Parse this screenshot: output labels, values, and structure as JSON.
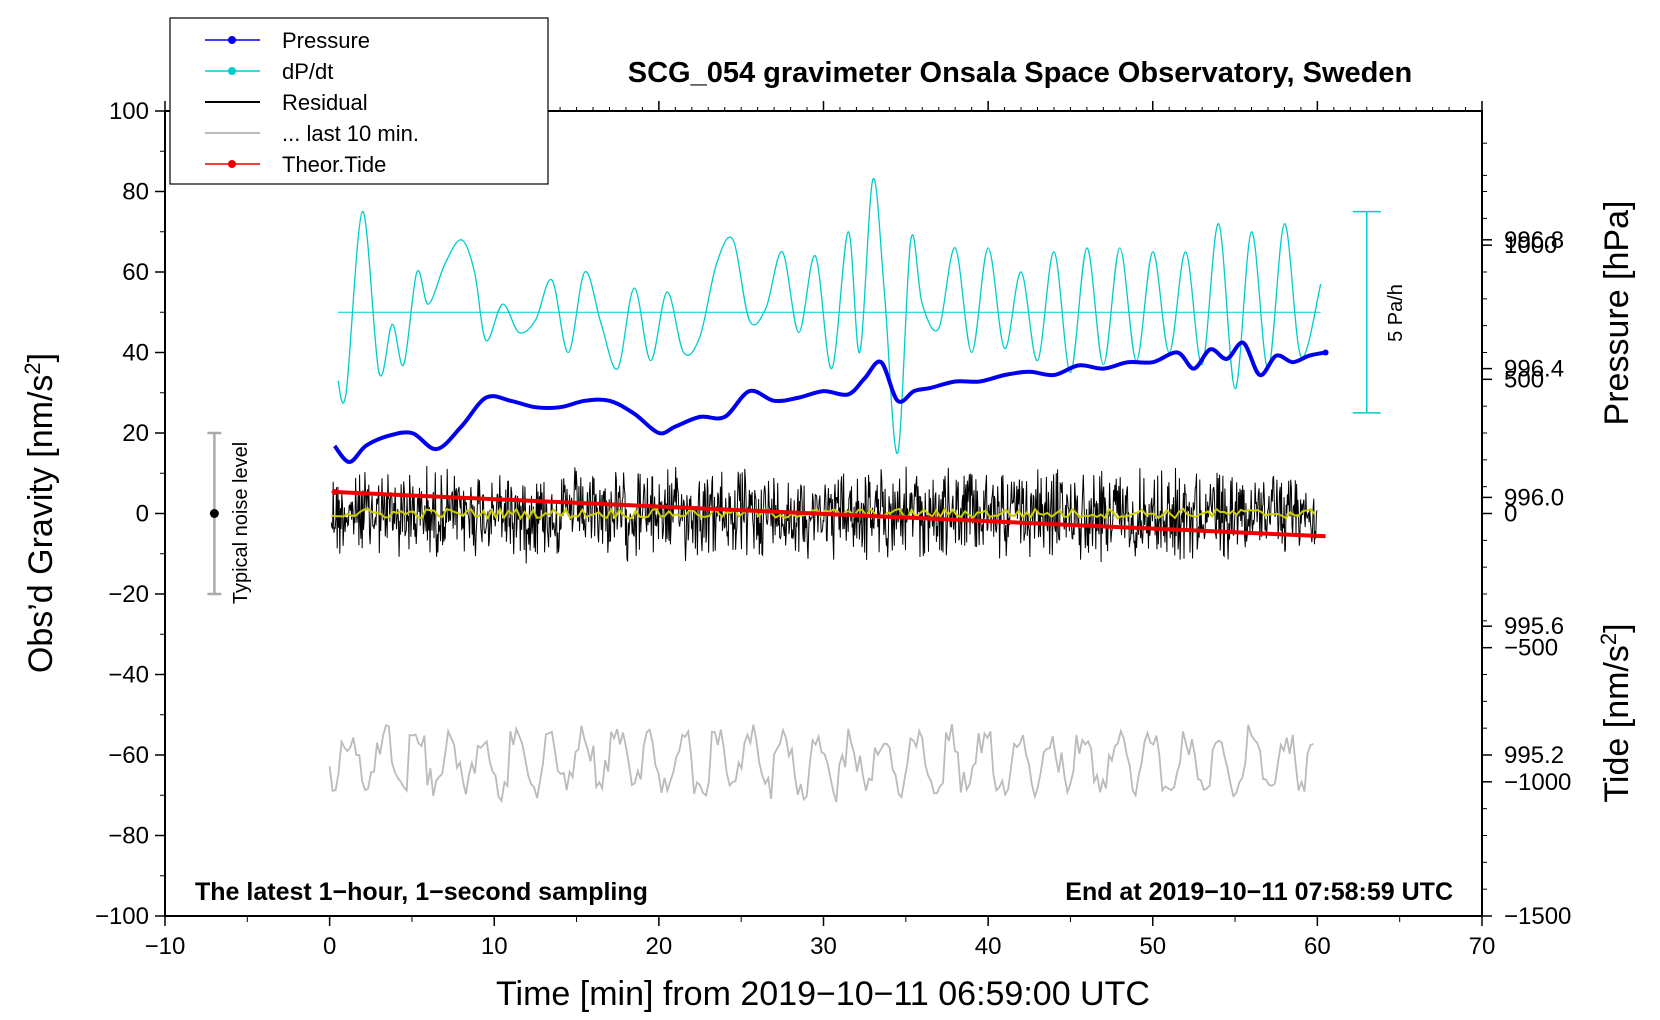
{
  "chart_data": {
    "type": "line",
    "title": "SCG_054 gravimeter Onsala Space Observatory, Sweden",
    "xlabel": "Time [min] from 2019−10−11 06:59:00 UTC",
    "ylabel_left": "Obs’d Gravity [nm/s",
    "ylabel_left_sup": "2",
    "ylabel_left_end": "]",
    "ylabel_right_pressure": "Pressure [hPa]",
    "ylabel_right_tide": "Tide [nm/s",
    "ylabel_right_tide_sup": "2",
    "ylabel_right_tide_end": "]",
    "xlim": [
      -10,
      70
    ],
    "ylim_left": [
      -100,
      100
    ],
    "pressure_ylim": [
      994.7,
      997.2
    ],
    "tide_ylim": [
      -1500,
      1500
    ],
    "x_ticks": [
      "−10",
      "0",
      "10",
      "20",
      "30",
      "40",
      "50",
      "60",
      "70"
    ],
    "x_tick_values": [
      -10,
      0,
      10,
      20,
      30,
      40,
      50,
      60,
      70
    ],
    "left_ticks": [
      "100",
      "80",
      "60",
      "40",
      "20",
      "0",
      "−20",
      "−40",
      "−60",
      "−80",
      "−100"
    ],
    "left_tick_values": [
      100,
      80,
      60,
      40,
      20,
      0,
      -20,
      -40,
      -60,
      -80,
      -100
    ],
    "pressure_ticks": [
      "996.8",
      "996.4",
      "996.0",
      "995.6",
      "995.2"
    ],
    "pressure_tick_values": [
      996.8,
      996.4,
      996.0,
      995.6,
      995.2
    ],
    "tide_ticks": [
      "1000",
      "500",
      "0",
      "−500",
      "−1000",
      "−1500"
    ],
    "tide_tick_values": [
      1000,
      500,
      0,
      -500,
      -1000,
      -1500
    ],
    "legend": [
      {
        "label": "Pressure",
        "color": "#0000ee",
        "marker": true
      },
      {
        "label": "dP/dt",
        "color": "#00cccc",
        "marker": true
      },
      {
        "label": "Residual",
        "color": "#000000",
        "marker": false
      },
      {
        "label": "... last 10 min.",
        "color": "#bbbbbb",
        "marker": false
      },
      {
        "label": "Theor.Tide",
        "color": "#ee0000",
        "marker": true
      }
    ],
    "annotation_left": "The latest 1−hour, 1−second sampling",
    "annotation_right": "End at 2019−10−11 07:58:59 UTC",
    "noise_label": "Typical noise level",
    "noise_bar": {
      "x": -7,
      "center": 0,
      "low": -20,
      "high": 20
    },
    "dpdt_scale_label": "5 Pa/h",
    "dpdt_scale_bar": {
      "x": 63,
      "low": 25,
      "high": 75
    },
    "dpdt_baseline": 50,
    "series": [
      {
        "name": "Pressure",
        "axis": "pressure",
        "color": "#0000ee",
        "x": [
          0.3,
          1.2,
          2.2,
          3.5,
          5,
          6.5,
          8,
          9.5,
          11,
          12.5,
          14,
          15.5,
          17,
          18.5,
          20,
          21,
          22.5,
          24,
          25.5,
          27,
          28.5,
          30,
          31.5,
          32.5,
          33.5,
          34.5,
          35.5,
          36.5,
          38,
          39.5,
          41,
          42.5,
          44,
          45.5,
          47,
          48.5,
          50,
          51.5,
          52.5,
          53.5,
          54.5,
          55.5,
          56.5,
          57.5,
          58.5,
          59.5,
          60.5
        ],
        "values": [
          996.16,
          996.11,
          996.16,
          996.19,
          996.2,
          996.15,
          996.22,
          996.31,
          996.3,
          996.28,
          996.28,
          996.3,
          996.3,
          996.26,
          996.2,
          996.22,
          996.25,
          996.25,
          996.33,
          996.3,
          996.31,
          996.33,
          996.32,
          996.37,
          996.42,
          996.3,
          996.33,
          996.34,
          996.36,
          996.36,
          996.38,
          996.39,
          996.38,
          996.41,
          996.4,
          996.42,
          996.42,
          996.45,
          996.4,
          996.46,
          996.43,
          996.48,
          996.38,
          996.44,
          996.42,
          996.44,
          996.45
        ]
      },
      {
        "name": "dP/dt",
        "axis": "left",
        "color": "#00cccc",
        "x": [
          0.5,
          1,
          2,
          3,
          3.8,
          4.5,
          5.3,
          6,
          7,
          8,
          8.8,
          9.5,
          10.5,
          11.5,
          12.5,
          13.5,
          14.5,
          15.5,
          16.5,
          17.5,
          18.5,
          19.5,
          20.5,
          21.5,
          22.5,
          23.5,
          24.5,
          25.5,
          26.5,
          27.5,
          28.5,
          29.5,
          30.5,
          31.5,
          32.2,
          33,
          33.7,
          34.5,
          35.3,
          36,
          37,
          38,
          39,
          40,
          41,
          42,
          43,
          44,
          45,
          46,
          47,
          48,
          49,
          50,
          51,
          52,
          53,
          54,
          55,
          56,
          57,
          58,
          59,
          60.2
        ],
        "values": [
          33,
          30,
          75,
          35,
          47,
          37,
          60,
          52,
          62,
          68,
          60,
          43,
          52,
          45,
          48,
          58,
          40,
          60,
          47,
          36,
          56,
          38,
          55,
          40,
          44,
          62,
          68,
          48,
          51,
          65,
          45,
          64,
          36,
          70,
          40,
          83,
          55,
          15,
          68,
          52,
          46,
          66,
          40,
          66,
          41,
          60,
          38,
          65,
          35,
          66,
          37,
          66,
          38,
          65,
          40,
          65,
          37,
          72,
          31,
          70,
          36,
          72,
          39,
          57
        ]
      },
      {
        "name": "Residual",
        "axis": "left",
        "color": "#000000",
        "x": [
          0,
          10,
          20,
          30,
          40,
          50,
          60
        ],
        "values": [
          0,
          0,
          0,
          0,
          0,
          0,
          0
        ],
        "band": [
          13,
          -13
        ]
      },
      {
        "name": "Residual (smoothed)",
        "axis": "left",
        "color": "#cccc00",
        "x": [
          0,
          10,
          20,
          30,
          40,
          50,
          60
        ],
        "values": [
          0,
          0,
          0,
          0,
          0,
          0,
          0
        ]
      },
      {
        "name": "... last 10 min.",
        "axis": "left",
        "color": "#bbbbbb",
        "x": [
          0,
          10,
          20,
          30,
          40,
          50,
          60
        ],
        "values": [
          -62,
          -62,
          -62,
          -62,
          -62,
          -62,
          -62
        ],
        "band": [
          -52,
          -75
        ]
      },
      {
        "name": "Theor.Tide",
        "axis": "tide",
        "color": "#ee0000",
        "x": [
          0.3,
          60.5
        ],
        "values": [
          80,
          -85
        ]
      }
    ]
  }
}
